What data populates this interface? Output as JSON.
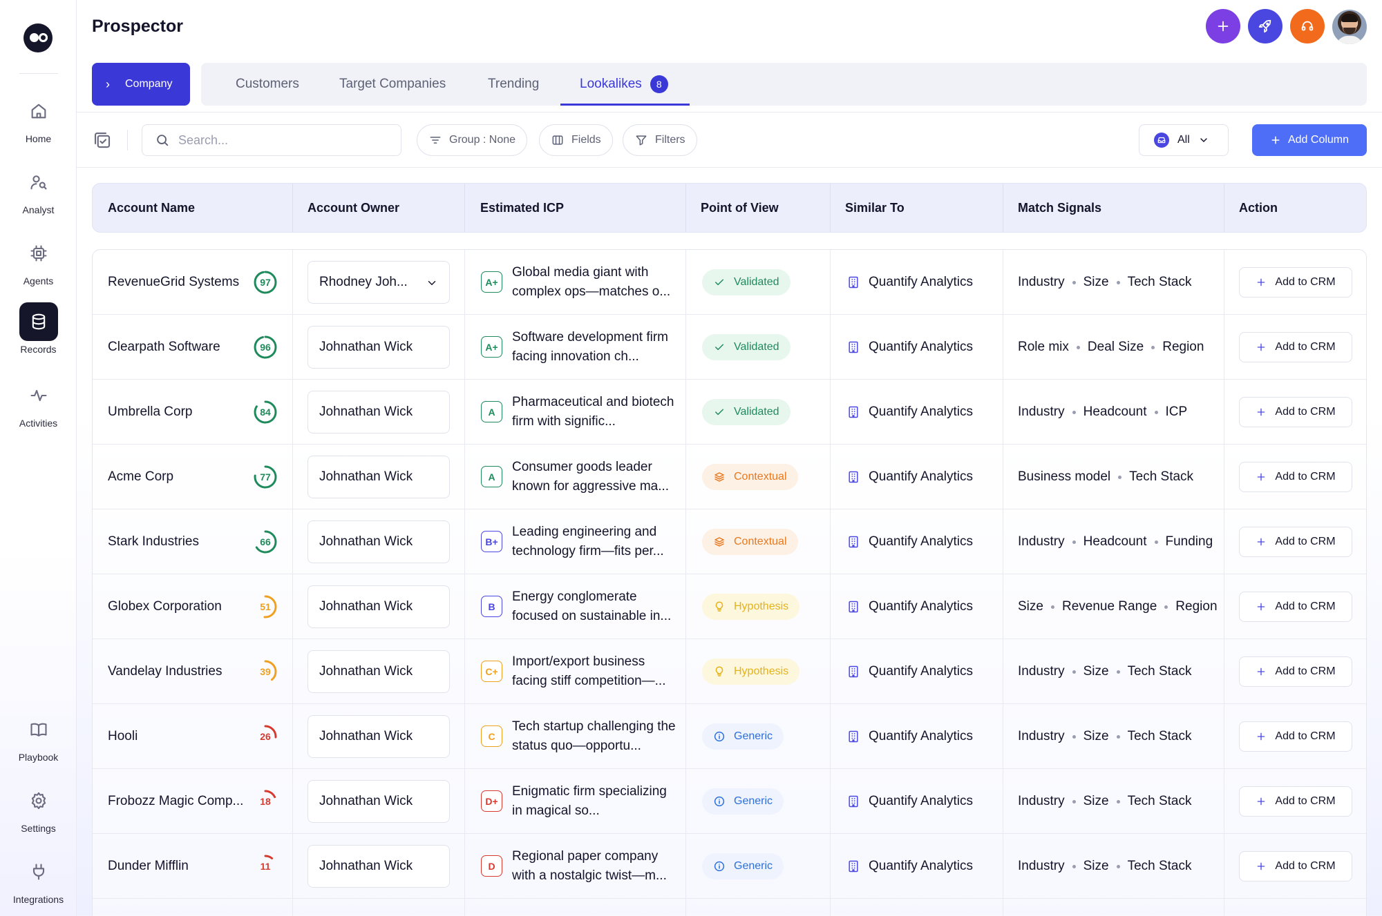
{
  "app": {
    "title": "Prospector"
  },
  "sidebar": {
    "items": [
      {
        "label": "Home",
        "icon": "home-icon"
      },
      {
        "label": "Analyst",
        "icon": "analyst-icon"
      },
      {
        "label": "Agents",
        "icon": "chip-icon"
      },
      {
        "label": "Records",
        "icon": "database-icon",
        "active": true
      },
      {
        "label": "Activities",
        "icon": "activity-icon"
      },
      {
        "label": "Playbook",
        "icon": "book-icon"
      },
      {
        "label": "Settings",
        "icon": "gear-icon"
      },
      {
        "label": "Integrations",
        "icon": "plug-icon"
      }
    ]
  },
  "header": {
    "buttons": [
      {
        "icon": "plus-icon",
        "color": "#7b3fe4"
      },
      {
        "icon": "rocket-icon",
        "color": "#4a47e0"
      },
      {
        "icon": "headset-icon",
        "color": "#f26a1b"
      }
    ]
  },
  "entity_selector": {
    "label": "Company"
  },
  "tabs": [
    {
      "label": "Customers"
    },
    {
      "label": "Target Companies"
    },
    {
      "label": "Trending"
    },
    {
      "label": "Lookalikes",
      "badge": "8",
      "active": true
    }
  ],
  "toolbar": {
    "search_placeholder": "Search...",
    "group_label": "Group : None",
    "fields_label": "Fields",
    "filters_label": "Filters",
    "all_label": "All",
    "add_column_label": "Add Column"
  },
  "table": {
    "columns": [
      "Account Name",
      "Account Owner",
      "Estimated ICP",
      "Point of View",
      "Similar To",
      "Match Signals",
      "Action"
    ],
    "rows": [
      {
        "name": "RevenueGrid Systems",
        "score": "97",
        "owner": "Rhodney Joh...",
        "owner_dropdown": true,
        "icp_grade": "A+",
        "icp_text": "Global media giant with complex ops—matches o...",
        "pov": "Validated",
        "similar": "Quantify Analytics",
        "signals": [
          "Industry",
          "Size",
          "Tech Stack"
        ],
        "action": "Add to CRM"
      },
      {
        "name": "Clearpath Software",
        "score": "96",
        "owner": "Johnathan Wick",
        "icp_grade": "A+",
        "icp_text": "Software development firm facing innovation ch...",
        "pov": "Validated",
        "similar": "Quantify Analytics",
        "signals": [
          "Role mix",
          "Deal Size",
          "Region"
        ],
        "action": "Add to CRM"
      },
      {
        "name": "Umbrella Corp",
        "score": "84",
        "owner": "Johnathan Wick",
        "icp_grade": "A",
        "icp_text": "Pharmaceutical and biotech firm with signific...",
        "pov": "Validated",
        "similar": "Quantify Analytics",
        "signals": [
          "Industry",
          "Headcount",
          "ICP"
        ],
        "action": "Add to CRM"
      },
      {
        "name": "Acme Corp",
        "score": "77",
        "owner": "Johnathan Wick",
        "icp_grade": "A",
        "icp_text": "Consumer goods leader known for aggressive ma...",
        "pov": "Contextual",
        "similar": "Quantify Analytics",
        "signals": [
          "Business model",
          "Tech Stack"
        ],
        "action": "Add to CRM"
      },
      {
        "name": "Stark Industries",
        "score": "66",
        "owner": "Johnathan Wick",
        "icp_grade": "B+",
        "icp_text": "Leading engineering and technology firm—fits per...",
        "pov": "Contextual",
        "similar": "Quantify Analytics",
        "signals": [
          "Industry",
          "Headcount",
          "Funding"
        ],
        "action": "Add to CRM"
      },
      {
        "name": "Globex Corporation",
        "score": "51",
        "owner": "Johnathan Wick",
        "icp_grade": "B",
        "icp_text": "Energy conglomerate focused on sustainable in...",
        "pov": "Hypothesis",
        "similar": "Quantify Analytics",
        "signals": [
          "Size",
          "Revenue Range",
          "Region"
        ],
        "action": "Add to CRM"
      },
      {
        "name": "Vandelay Industries",
        "score": "39",
        "owner": "Johnathan Wick",
        "icp_grade": "C+",
        "icp_text": "Import/export business facing stiff competition—...",
        "pov": "Hypothesis",
        "similar": "Quantify Analytics",
        "signals": [
          "Industry",
          "Size",
          "Tech Stack"
        ],
        "action": "Add to CRM"
      },
      {
        "name": "Hooli",
        "score": "26",
        "owner": "Johnathan Wick",
        "icp_grade": "C",
        "icp_text": "Tech startup challenging the status quo—opportu...",
        "pov": "Generic",
        "similar": "Quantify Analytics",
        "signals": [
          "Industry",
          "Size",
          "Tech Stack"
        ],
        "action": "Add to CRM"
      },
      {
        "name": "Frobozz Magic Comp...",
        "score": "18",
        "owner": "Johnathan Wick",
        "icp_grade": "D+",
        "icp_text": "Enigmatic firm specializing in magical so...",
        "pov": "Generic",
        "similar": "Quantify Analytics",
        "signals": [
          "Industry",
          "Size",
          "Tech Stack"
        ],
        "action": "Add to CRM"
      },
      {
        "name": "Dunder Mifflin",
        "score": "11",
        "owner": "Johnathan Wick",
        "icp_grade": "D",
        "icp_text": "Regional paper company with a nostalgic twist—m...",
        "pov": "Generic",
        "similar": "Quantify Analytics",
        "signals": [
          "Industry",
          "Size",
          "Tech Stack"
        ],
        "action": "Add to CRM"
      }
    ]
  },
  "colors": {
    "accent": "#3b38d8",
    "score_high": "#1f8a5b",
    "score_mid": "#f0a020",
    "score_low": "#d63a2f",
    "validated_bg": "#e8f7ee",
    "validated_fg": "#1f8a5b",
    "contextual_bg": "#fdf0e4",
    "contextual_fg": "#e8781d",
    "hypothesis_bg": "#fdf7dd",
    "hypothesis_fg": "#e6b219",
    "generic_bg": "#eef3fd",
    "generic_fg": "#2d6fdc"
  }
}
